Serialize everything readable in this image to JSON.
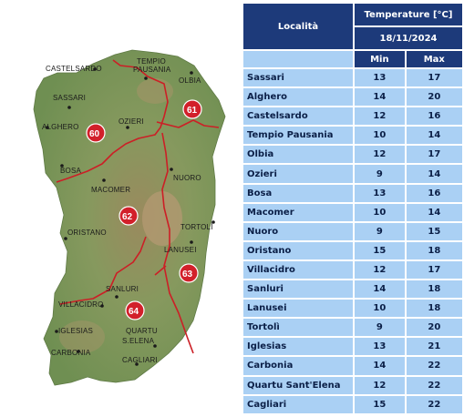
{
  "map": {
    "towns": [
      {
        "name": "CASTELSARDO"
      },
      {
        "name": "TEMPIO"
      },
      {
        "name": "PAUSANIA"
      },
      {
        "name": "OLBIA"
      },
      {
        "name": "SASSARI"
      },
      {
        "name": "ALGHERO"
      },
      {
        "name": "OZIERI"
      },
      {
        "name": "BOSA"
      },
      {
        "name": "NUORO"
      },
      {
        "name": "MACOMER"
      },
      {
        "name": "TORTOLÌ"
      },
      {
        "name": "LANUSEI"
      },
      {
        "name": "ORISTANO"
      },
      {
        "name": "SANLURI"
      },
      {
        "name": "VILLACIDRO"
      },
      {
        "name": "IGLESIAS"
      },
      {
        "name": "QUARTU"
      },
      {
        "name": "S.ELENA"
      },
      {
        "name": "CARBONIA"
      },
      {
        "name": "CAGLIARI"
      }
    ],
    "zones": [
      {
        "label": "60"
      },
      {
        "label": "61"
      },
      {
        "label": "62"
      },
      {
        "label": "63"
      },
      {
        "label": "64"
      }
    ],
    "colors": {
      "land": "#7f9a5c",
      "highland": "#b89a6e",
      "sea": "#ffffff",
      "boundary": "#cc1f26",
      "zone_marker": "#d2202a"
    }
  },
  "table": {
    "header_title": "Temperature [°C]",
    "header_date": "18/11/2024",
    "col_locality": "Località",
    "col_min": "Min",
    "col_max": "Max",
    "rows": [
      {
        "location": "Sassari",
        "min": "13",
        "max": "17"
      },
      {
        "location": "Alghero",
        "min": "14",
        "max": "20"
      },
      {
        "location": "Castelsardo",
        "min": "12",
        "max": "16"
      },
      {
        "location": "Tempio Pausania",
        "min": "10",
        "max": "14"
      },
      {
        "location": "Olbia",
        "min": "12",
        "max": "17"
      },
      {
        "location": "Ozieri",
        "min": "9",
        "max": "14"
      },
      {
        "location": "Bosa",
        "min": "13",
        "max": "16"
      },
      {
        "location": "Macomer",
        "min": "10",
        "max": "14"
      },
      {
        "location": "Nuoro",
        "min": "9",
        "max": "15"
      },
      {
        "location": "Oristano",
        "min": "15",
        "max": "18"
      },
      {
        "location": "Villacidro",
        "min": "12",
        "max": "17"
      },
      {
        "location": "Sanluri",
        "min": "14",
        "max": "18"
      },
      {
        "location": "Lanusei",
        "min": "10",
        "max": "18"
      },
      {
        "location": "Tortolì",
        "min": "9",
        "max": "20"
      },
      {
        "location": "Iglesias",
        "min": "13",
        "max": "21"
      },
      {
        "location": "Carbonia",
        "min": "14",
        "max": "22"
      },
      {
        "location": "Quartu Sant'Elena",
        "min": "12",
        "max": "22"
      },
      {
        "location": "Cagliari",
        "min": "15",
        "max": "22"
      }
    ],
    "colors": {
      "header_bg": "#1d3a7a",
      "row_bg": "#aad0f4",
      "row_text": "#0b1f47"
    }
  }
}
